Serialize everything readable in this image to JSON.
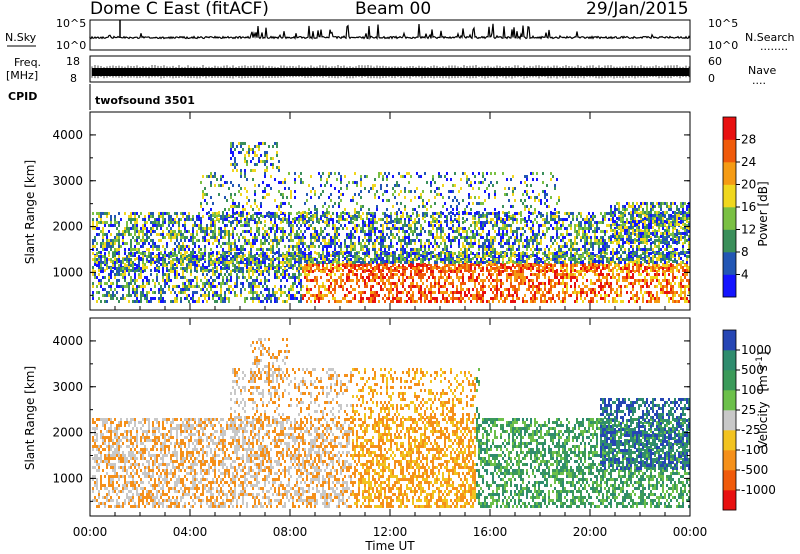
{
  "header": {
    "station": "Dome C East (fitACF)",
    "beam": "Beam 00",
    "date": "29/Jan/2015"
  },
  "status_panels": {
    "nsky_label": "N.Sky",
    "nsky_ticks": [
      "10^5",
      "10^0"
    ],
    "nsearch_label": "N.Search",
    "nsearch_dots": "........",
    "freq_label": "Freq.",
    "freq_unit": "[MHz]",
    "freq_ticks": [
      "18",
      "8"
    ],
    "nave_label": "Nave",
    "nave_dots": "....",
    "nave_ticks": [
      "60",
      "0"
    ],
    "cpid_label": "CPID",
    "cpid_value": "twofsound 3501"
  },
  "chart_data": [
    {
      "type": "heatmap",
      "name": "power",
      "ylabel": "Slant Range [km]",
      "yticks": [
        "1000",
        "2000",
        "3000",
        "4000"
      ],
      "ylim": [
        180,
        4500
      ],
      "xlabel": "",
      "xlim_hours": [
        0,
        24
      ],
      "colorbar": {
        "label": "Power [dB]",
        "ticks": [
          "4",
          "8",
          "12",
          "16",
          "20",
          "24",
          "28"
        ],
        "colors": [
          "#1414ff",
          "#2256b4",
          "#3a8f5a",
          "#7ac043",
          "#f0d71e",
          "#f59b14",
          "#f05a0a",
          "#e81010"
        ]
      }
    },
    {
      "type": "heatmap",
      "name": "velocity",
      "ylabel": "Slant Range [km]",
      "yticks": [
        "1000",
        "2000",
        "3000",
        "4000"
      ],
      "ylim": [
        180,
        4500
      ],
      "xlabel": "Time UT",
      "xticks": [
        "00:00",
        "04:00",
        "08:00",
        "12:00",
        "16:00",
        "20:00",
        "00:00"
      ],
      "xlim_hours": [
        0,
        24
      ],
      "colorbar": {
        "label": "Velocity",
        "unit": "[m s",
        "unit_sup": "-1",
        "unit_close": "]",
        "ticks": [
          "1000",
          "500",
          "100",
          "25",
          "-25",
          "-100",
          "-500",
          "-1000"
        ],
        "colors": [
          "#2646b4",
          "#2f8c6e",
          "#3b9a59",
          "#6cc04a",
          "#c8c8c8",
          "#f2c320",
          "#f5901a",
          "#f05a0a",
          "#e81010"
        ]
      }
    }
  ]
}
